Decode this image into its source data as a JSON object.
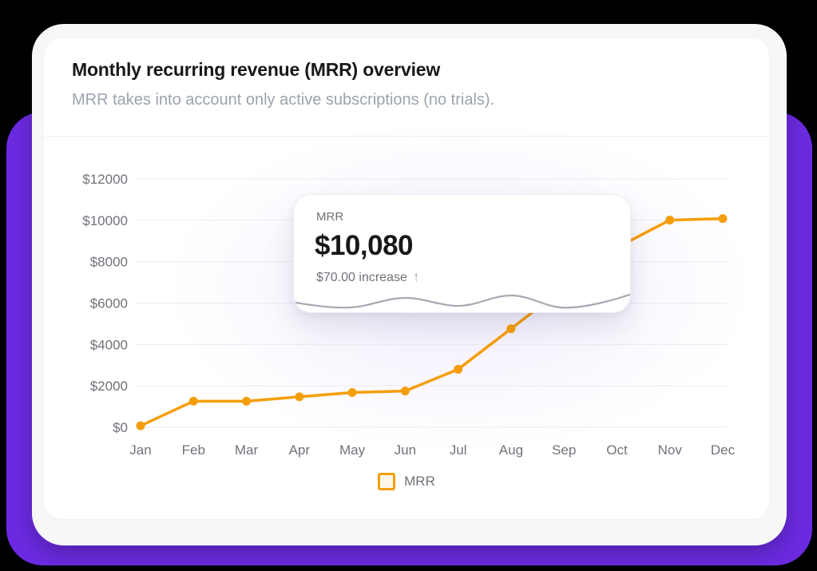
{
  "page": {
    "background_color": "#000000",
    "accent_purple": "#6C2BE2"
  },
  "card": {
    "title": "Monthly recurring revenue (MRR) overview",
    "subtitle": "MRR takes into account only active subscriptions (no trials)."
  },
  "tooltip": {
    "label": "MRR",
    "value": "$10,080",
    "delta": "$70.00 increase",
    "delta_arrow": "↑"
  },
  "legend": {
    "label": "MRR",
    "swatch_border_color": "#F59E0B",
    "swatch_fill_color": "#FDF8E9"
  },
  "chart_data": {
    "type": "line",
    "title": "Monthly recurring revenue (MRR) overview",
    "categories": [
      "Jan",
      "Feb",
      "Mar",
      "Apr",
      "May",
      "Jun",
      "Jul",
      "Aug",
      "Sep",
      "Oct",
      "Nov",
      "Dec"
    ],
    "series": [
      {
        "name": "MRR",
        "color": "#F59E0B",
        "values": [
          70,
          1260,
          1260,
          1470,
          1680,
          1750,
          2800,
          4760,
          6720,
          8680,
          10010,
          10080
        ]
      }
    ],
    "xlabel": "",
    "ylabel": "",
    "ylim": [
      0,
      12000
    ],
    "yticks": [
      0,
      2000,
      4000,
      6000,
      8000,
      10000,
      12000
    ],
    "ytick_labels": [
      "$0",
      "$2000",
      "$4000",
      "$6000",
      "$8000",
      "$10000",
      "$12000"
    ],
    "grid": true,
    "gridline_color": "#EAEAEE",
    "axis_label_color": "#71717A",
    "legend_position": "bottom",
    "legend_entries": [
      "MRR"
    ]
  }
}
